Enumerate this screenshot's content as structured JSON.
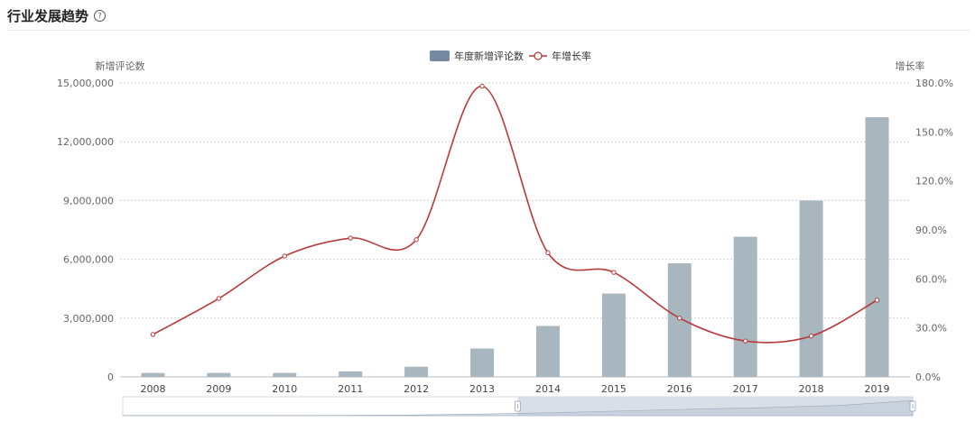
{
  "header": {
    "title": "行业发展趋势",
    "help_icon": "question-circle-icon"
  },
  "chart_data": {
    "type": "bar",
    "categories": [
      "2008",
      "2009",
      "2010",
      "2011",
      "2012",
      "2013",
      "2014",
      "2015",
      "2016",
      "2017",
      "2018",
      "2019"
    ],
    "series": [
      {
        "name": "年度新增评论数",
        "type": "bar",
        "axis": "left",
        "values": [
          200000,
          200000,
          200000,
          280000,
          520000,
          1450000,
          2600000,
          4250000,
          5800000,
          7150000,
          9000000,
          13250000
        ]
      },
      {
        "name": "年增长率",
        "type": "line",
        "axis": "right",
        "values": [
          26,
          48,
          74,
          85,
          84,
          178,
          76,
          64,
          36,
          22,
          25,
          47
        ]
      }
    ],
    "y_left": {
      "label": "新增评论数",
      "ylim": [
        0,
        15000000
      ],
      "ticks": [
        "0",
        "3,000,000",
        "6,000,000",
        "9,000,000",
        "12,000,000",
        "15,000,000"
      ]
    },
    "y_right": {
      "label": "增长率",
      "ylim": [
        0,
        180
      ],
      "ticks": [
        "0.0%",
        "30.0%",
        "60.0%",
        "90.0%",
        "120.0%",
        "150.0%",
        "180.0%"
      ]
    },
    "legend_position": "top-center",
    "grid": true,
    "colors": {
      "bar": "#a7b6bf",
      "line": "#b8393b",
      "legend_bar": "#7589a0",
      "grid": "#d0d0d0",
      "axis_text": "#666666"
    },
    "data_zoom": {
      "visible": true,
      "selected_range_percent": [
        50,
        100
      ]
    }
  }
}
